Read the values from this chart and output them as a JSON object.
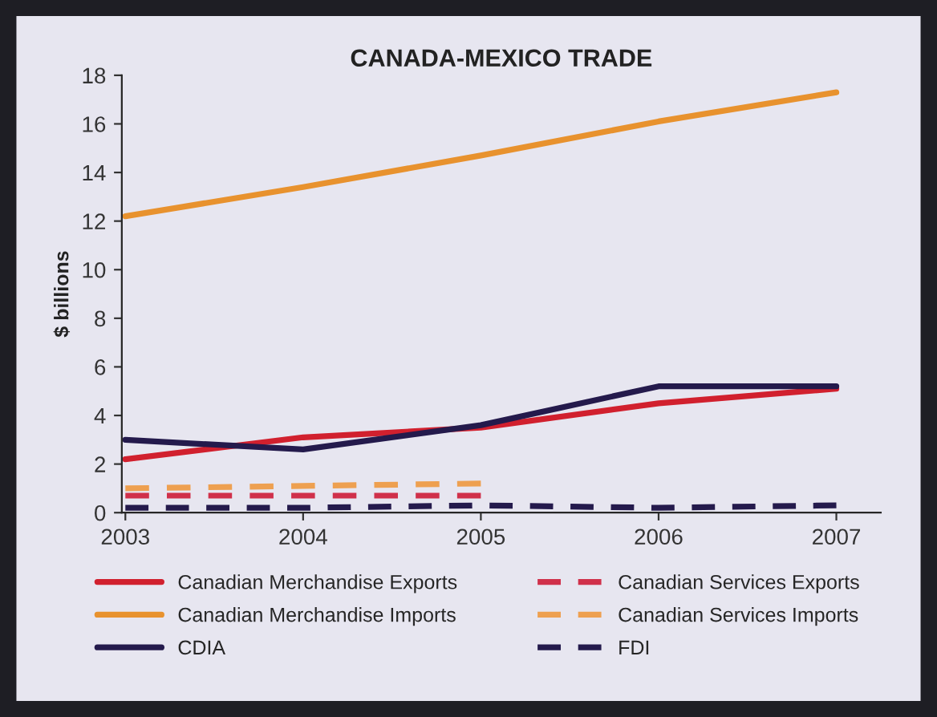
{
  "chart_data": {
    "type": "line",
    "title": "CANADA-MEXICO TRADE",
    "ylabel": "$ billions",
    "categories": [
      "2003",
      "2004",
      "2005",
      "2006",
      "2007"
    ],
    "series": [
      {
        "name": "Canadian Merchandise Exports",
        "color": "#d1202e",
        "values": [
          2.2,
          3.1,
          3.5,
          4.5,
          5.1
        ]
      },
      {
        "name": "Canadian Merchandise Imports",
        "color": "#e8922e",
        "values": [
          12.2,
          13.4,
          14.7,
          16.1,
          17.3
        ]
      },
      {
        "name": "CDIA",
        "color": "#241a4c",
        "values": [
          3.0,
          2.6,
          3.6,
          5.2,
          5.2
        ]
      },
      {
        "name": "Canadian Services Exports",
        "color": "#d0304a",
        "line_style": "dashed",
        "values": [
          0.7,
          0.7,
          0.7,
          null,
          null
        ]
      },
      {
        "name": "Canadian Services Imports",
        "color": "#eea050",
        "line_style": "dashed",
        "values": [
          1.0,
          1.1,
          1.2,
          null,
          null
        ]
      },
      {
        "name": "FDI",
        "color": "#241a4c",
        "line_style": "dashed",
        "values": [
          0.2,
          0.2,
          0.3,
          0.2,
          0.3
        ]
      }
    ],
    "ylim": [
      0,
      18
    ],
    "yticks": [
      0,
      2,
      4,
      6,
      8,
      10,
      12,
      14,
      16,
      18
    ],
    "grid": false,
    "legend": "bottom",
    "marker": "none",
    "line_style": "solid"
  }
}
